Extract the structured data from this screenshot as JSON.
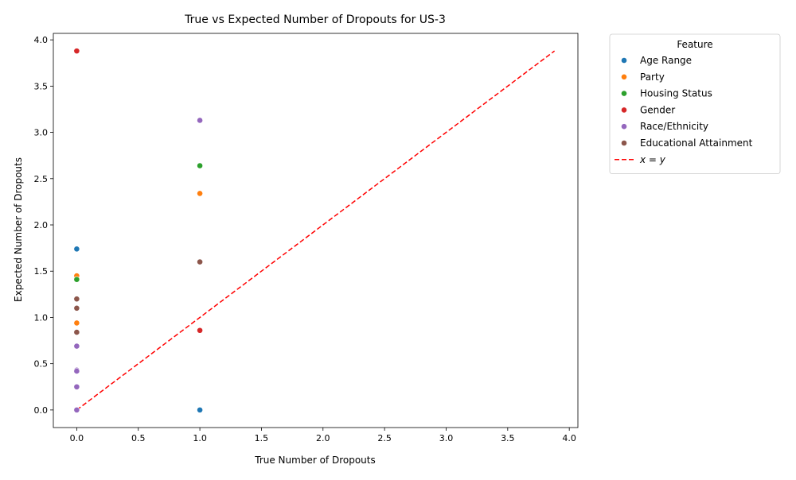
{
  "chart_data": {
    "type": "scatter",
    "title": "True vs Expected Number of Dropouts for US-3",
    "xlabel": "True Number of Dropouts",
    "ylabel": "Expected Number of Dropouts",
    "xlim": [
      -0.19,
      4.07
    ],
    "ylim": [
      -0.19,
      4.07
    ],
    "x_ticks": [
      "0.0",
      "0.5",
      "1.0",
      "1.5",
      "2.0",
      "2.5",
      "3.0",
      "3.5",
      "4.0"
    ],
    "y_ticks": [
      "0.0",
      "0.5",
      "1.0",
      "1.5",
      "2.0",
      "2.5",
      "3.0",
      "3.5",
      "4.0"
    ],
    "grid": false,
    "legend_title": "Feature",
    "legend_position": "outside-top-right",
    "series": [
      {
        "name": "Age Range",
        "color": "#1f77b4",
        "points": [
          [
            0,
            1.74
          ],
          [
            1,
            0.0
          ]
        ]
      },
      {
        "name": "Party",
        "color": "#ff7f0e",
        "points": [
          [
            0,
            1.45
          ],
          [
            0,
            0.94
          ],
          [
            1,
            2.34
          ]
        ]
      },
      {
        "name": "Housing Status",
        "color": "#2ca02c",
        "points": [
          [
            0,
            1.41
          ],
          [
            1,
            2.64
          ]
        ]
      },
      {
        "name": "Gender",
        "color": "#d62728",
        "points": [
          [
            0,
            3.88
          ],
          [
            1,
            0.86
          ]
        ]
      },
      {
        "name": "Race/Ethnicity",
        "color": "#9467bd",
        "points": [
          [
            0,
            0.69
          ],
          [
            0,
            0.43
          ],
          [
            0,
            0.42
          ],
          [
            0,
            0.25
          ],
          [
            0,
            0.0
          ],
          [
            1,
            3.13
          ]
        ]
      },
      {
        "name": "Educational Attainment",
        "color": "#8c564b",
        "points": [
          [
            0,
            1.2
          ],
          [
            0,
            1.1
          ],
          [
            0,
            0.84
          ],
          [
            1,
            1.6
          ]
        ]
      }
    ],
    "reference_line": {
      "name": "x = y",
      "label_prefix": "x",
      "label_mid": " = ",
      "label_suffix": "y",
      "color": "#ff0000",
      "from": [
        0,
        0
      ],
      "to": [
        3.88,
        3.88
      ]
    }
  }
}
